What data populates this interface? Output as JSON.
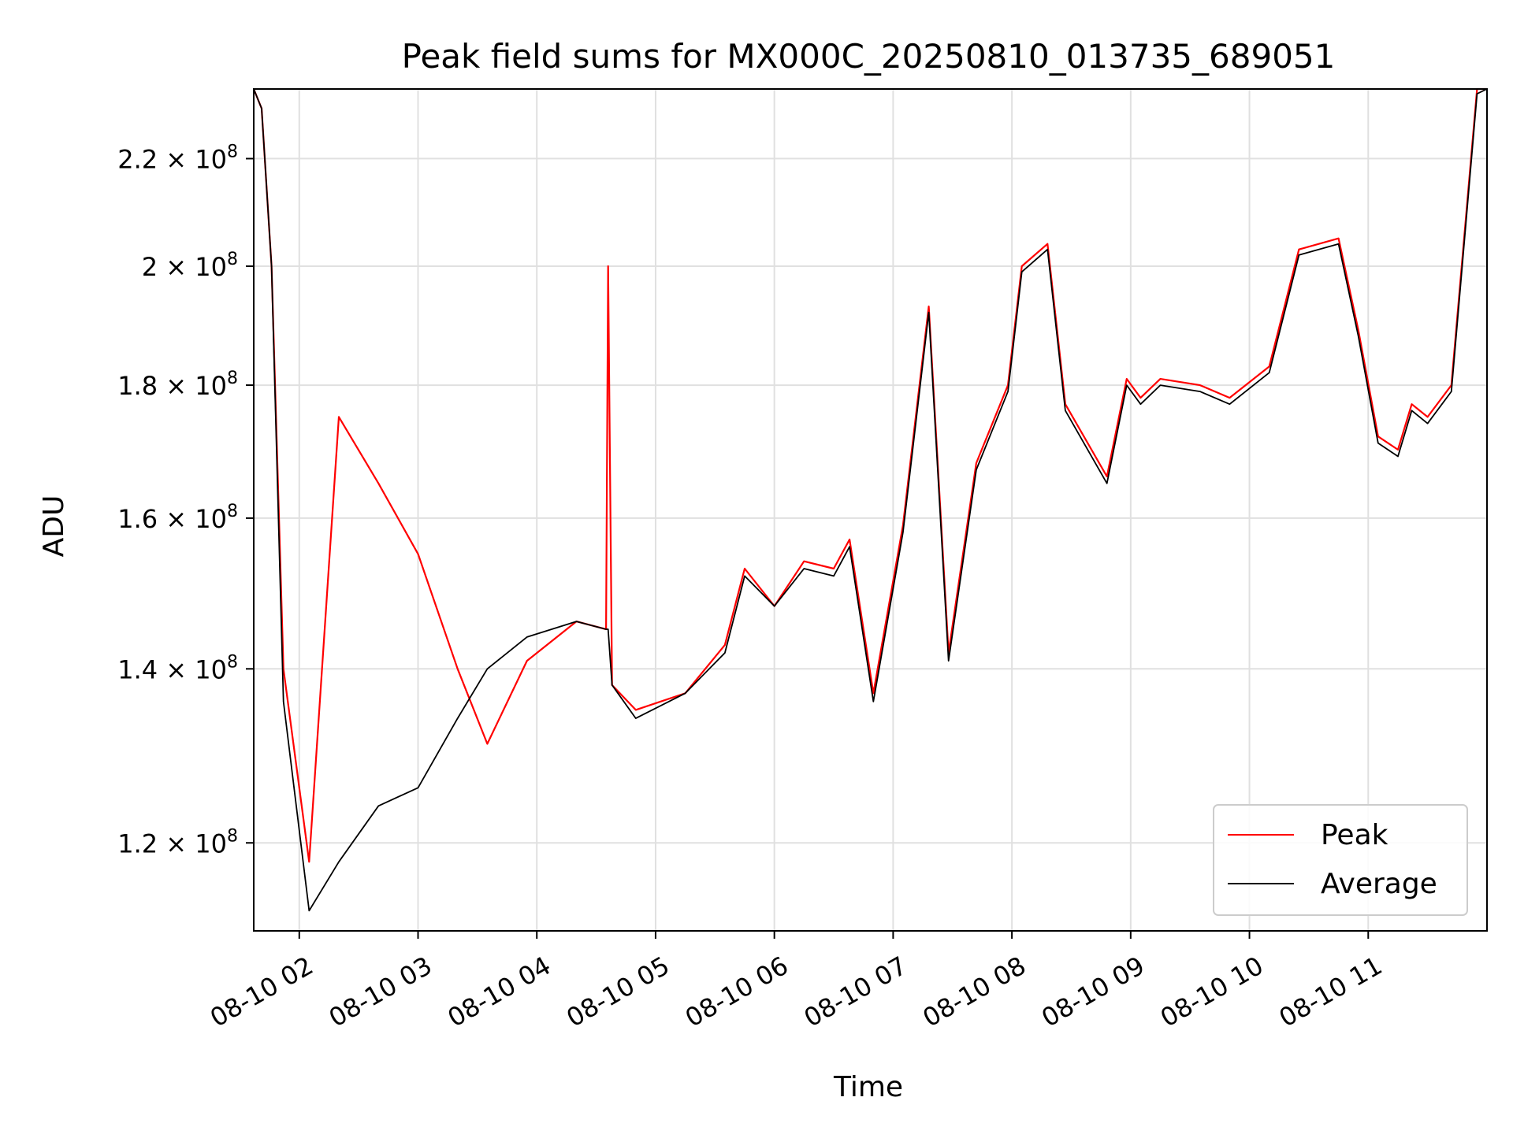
{
  "chart_data": {
    "type": "line",
    "title": "Peak field sums for MX000C_20250810_013735_689051",
    "xlabel": "Time",
    "ylabel": "ADU",
    "yscale": "log",
    "ylim": [
      111000000,
      234000000
    ],
    "grid": true,
    "legend_position": "lower right",
    "x_tick_labels": [
      "08-10 02",
      "08-10 03",
      "08-10 04",
      "08-10 05",
      "08-10 06",
      "08-10 07",
      "08-10 08",
      "08-10 09",
      "08-10 10",
      "08-10 11"
    ],
    "y_ticks": [
      {
        "value": 120000000,
        "mantissa": "1.2",
        "base": "10",
        "exponent": "8"
      },
      {
        "value": 140000000,
        "mantissa": "1.4",
        "base": "10",
        "exponent": "8"
      },
      {
        "value": 160000000,
        "mantissa": "1.6",
        "base": "10",
        "exponent": "8"
      },
      {
        "value": 180000000,
        "mantissa": "1.8",
        "base": "10",
        "exponent": "8"
      },
      {
        "value": 200000000,
        "mantissa": "2",
        "base": "10",
        "exponent": "8"
      },
      {
        "value": 220000000,
        "mantissa": "2.2",
        "base": "10",
        "exponent": "8"
      }
    ],
    "series": [
      {
        "name": "Peak",
        "color": "#ff0000",
        "x": [
          "2025-08-10 01:37",
          "2025-08-10 01:41",
          "2025-08-10 01:46",
          "2025-08-10 01:52",
          "2025-08-10 02:05",
          "2025-08-10 02:20",
          "2025-08-10 02:40",
          "2025-08-10 03:00",
          "2025-08-10 03:20",
          "2025-08-10 03:35",
          "2025-08-10 03:55",
          "2025-08-10 04:20",
          "2025-08-10 04:35",
          "2025-08-10 04:36",
          "2025-08-10 04:38",
          "2025-08-10 04:50",
          "2025-08-10 05:15",
          "2025-08-10 05:35",
          "2025-08-10 05:45",
          "2025-08-10 06:00",
          "2025-08-10 06:15",
          "2025-08-10 06:30",
          "2025-08-10 06:38",
          "2025-08-10 06:50",
          "2025-08-10 07:05",
          "2025-08-10 07:18",
          "2025-08-10 07:28",
          "2025-08-10 07:42",
          "2025-08-10 07:58",
          "2025-08-10 08:05",
          "2025-08-10 08:18",
          "2025-08-10 08:27",
          "2025-08-10 08:48",
          "2025-08-10 08:58",
          "2025-08-10 09:05",
          "2025-08-10 09:15",
          "2025-08-10 09:35",
          "2025-08-10 09:50",
          "2025-08-10 10:10",
          "2025-08-10 10:25",
          "2025-08-10 10:45",
          "2025-08-10 10:55",
          "2025-08-10 11:05",
          "2025-08-10 11:15",
          "2025-08-10 11:22",
          "2025-08-10 11:30",
          "2025-08-10 11:42",
          "2025-08-10 11:55",
          "2025-08-10 12:00"
        ],
        "values": [
          234000000,
          230000000,
          200000000,
          140000000,
          118000000,
          175000000,
          165000000,
          155000000,
          140000000,
          131000000,
          141000000,
          146000000,
          145000000,
          200000000,
          138000000,
          135000000,
          137000000,
          143000000,
          153000000,
          148000000,
          154000000,
          153000000,
          157000000,
          137000000,
          159000000,
          193000000,
          142000000,
          168000000,
          180000000,
          200000000,
          204000000,
          177000000,
          166000000,
          181000000,
          178000000,
          181000000,
          180000000,
          178000000,
          183000000,
          203000000,
          205000000,
          189000000,
          172000000,
          170000000,
          177000000,
          175000000,
          180000000,
          234000000,
          234000000
        ]
      },
      {
        "name": "Average",
        "color": "#000000",
        "x": [
          "2025-08-10 01:37",
          "2025-08-10 01:41",
          "2025-08-10 01:46",
          "2025-08-10 01:52",
          "2025-08-10 02:05",
          "2025-08-10 02:20",
          "2025-08-10 02:40",
          "2025-08-10 03:00",
          "2025-08-10 03:20",
          "2025-08-10 03:35",
          "2025-08-10 03:55",
          "2025-08-10 04:20",
          "2025-08-10 04:35",
          "2025-08-10 04:36",
          "2025-08-10 04:38",
          "2025-08-10 04:50",
          "2025-08-10 05:15",
          "2025-08-10 05:35",
          "2025-08-10 05:45",
          "2025-08-10 06:00",
          "2025-08-10 06:15",
          "2025-08-10 06:30",
          "2025-08-10 06:38",
          "2025-08-10 06:50",
          "2025-08-10 07:05",
          "2025-08-10 07:18",
          "2025-08-10 07:28",
          "2025-08-10 07:42",
          "2025-08-10 07:58",
          "2025-08-10 08:05",
          "2025-08-10 08:18",
          "2025-08-10 08:27",
          "2025-08-10 08:48",
          "2025-08-10 08:58",
          "2025-08-10 09:05",
          "2025-08-10 09:15",
          "2025-08-10 09:35",
          "2025-08-10 09:50",
          "2025-08-10 10:10",
          "2025-08-10 10:25",
          "2025-08-10 10:45",
          "2025-08-10 10:55",
          "2025-08-10 11:05",
          "2025-08-10 11:15",
          "2025-08-10 11:22",
          "2025-08-10 11:30",
          "2025-08-10 11:42",
          "2025-08-10 11:55",
          "2025-08-10 12:00"
        ],
        "values": [
          234000000,
          230000000,
          200000000,
          136000000,
          113000000,
          118000000,
          124000000,
          126000000,
          134000000,
          140000000,
          144000000,
          146000000,
          145000000,
          145000000,
          138000000,
          134000000,
          137000000,
          142000000,
          152000000,
          148000000,
          153000000,
          152000000,
          156000000,
          136000000,
          158000000,
          192000000,
          141000000,
          167000000,
          179000000,
          199000000,
          203000000,
          176000000,
          165000000,
          180000000,
          177000000,
          180000000,
          179000000,
          177000000,
          182000000,
          202000000,
          204000000,
          188000000,
          171000000,
          169000000,
          176000000,
          174000000,
          179000000,
          233000000,
          234000000
        ]
      }
    ]
  }
}
